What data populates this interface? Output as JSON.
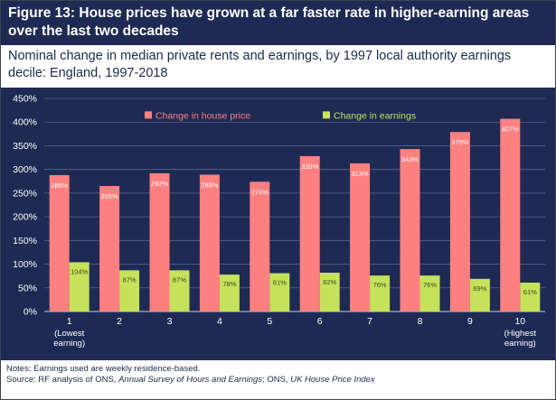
{
  "title": "Figure 13: House prices have grown at a far faster rate in higher-earning areas over the last two decades",
  "subtitle": "Nominal change in median private rents and earnings, by 1997 local authority earnings decile: England, 1997-2018",
  "notes": "Notes: Earnings used are weekly residence-based.",
  "source": {
    "prefix": "Source: RF analysis of ONS, ",
    "italic1": "Annual Survey of Hours and Earnings",
    "middle": "; ONS, ",
    "italic2": "UK House Price Index"
  },
  "colors": {
    "background": "#1e2a54",
    "house_price": "#ff8080",
    "earnings": "#c4e25a",
    "axis_text": "#ffffff",
    "gridline": "#5d6686"
  },
  "chart_data": {
    "type": "bar",
    "categories": [
      "1",
      "2",
      "3",
      "4",
      "5",
      "6",
      "7",
      "8",
      "9",
      "10"
    ],
    "category_sublabels": [
      "(Lowest earning)",
      "",
      "",
      "",
      "",
      "",
      "",
      "",
      "",
      "(Highest earning)"
    ],
    "series": [
      {
        "name": "Change in house price",
        "values": [
          288,
          265,
          292,
          289,
          274,
          328,
          313,
          343,
          379,
          407
        ],
        "labels": [
          "288%",
          "265%",
          "292%",
          "289%",
          "274%",
          "328%",
          "313%",
          "343%",
          "379%",
          "407%"
        ]
      },
      {
        "name": "Change in earnings",
        "values": [
          104,
          87,
          87,
          78,
          81,
          82,
          76,
          76,
          69,
          61
        ],
        "labels": [
          "104%",
          "87%",
          "87%",
          "78%",
          "81%",
          "82%",
          "76%",
          "76%",
          "69%",
          "61%"
        ]
      }
    ],
    "ylim": [
      0,
      450
    ],
    "yticks": [
      "0%",
      "50%",
      "100%",
      "150%",
      "200%",
      "250%",
      "300%",
      "350%",
      "400%",
      "450%"
    ],
    "ytick_values": [
      0,
      50,
      100,
      150,
      200,
      250,
      300,
      350,
      400,
      450
    ],
    "grid": true,
    "legend_position": "top"
  }
}
